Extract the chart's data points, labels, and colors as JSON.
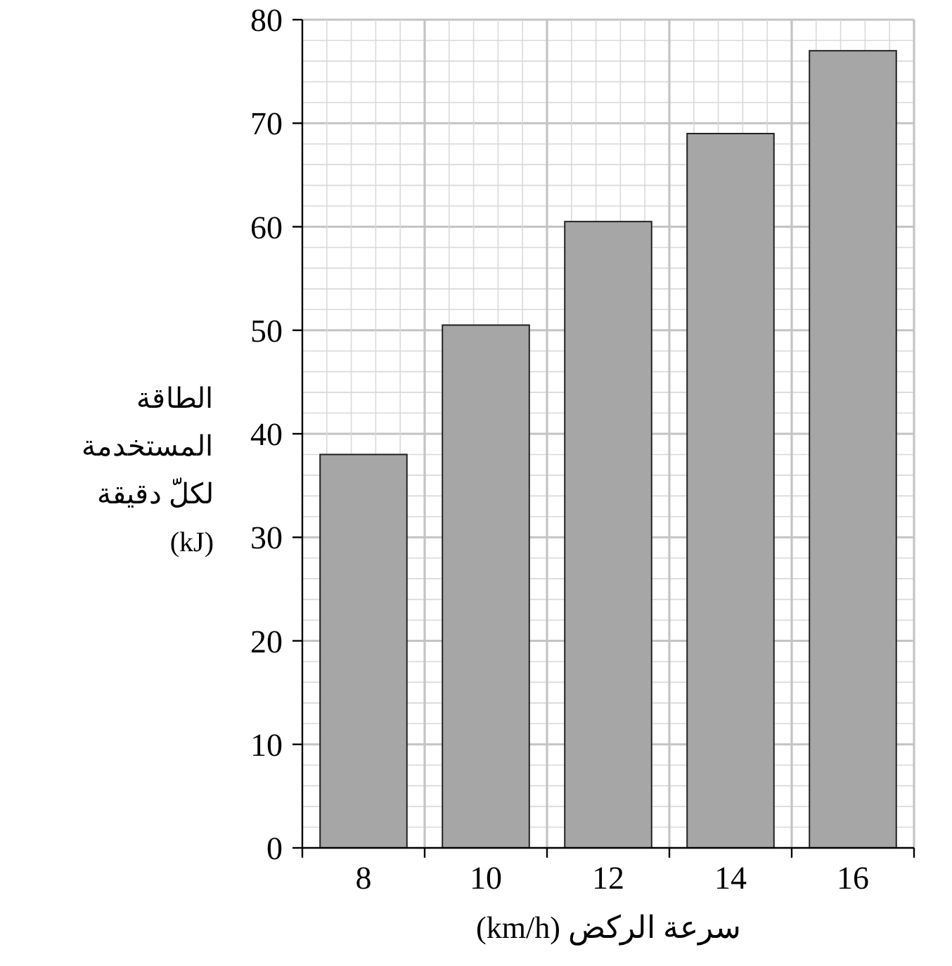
{
  "chart_data": {
    "type": "bar",
    "xlabel": "سرعة الركض (km/h)",
    "ylabel": "الطاقة\nالمستخدمة\nلكلّ دقيقة\n(kJ)",
    "categories": [
      "8",
      "10",
      "12",
      "14",
      "16"
    ],
    "values": [
      38,
      50.5,
      60.5,
      69,
      77
    ],
    "color": "#a6a6a6",
    "ylim": [
      0,
      80
    ],
    "yticks": [
      0,
      10,
      20,
      30,
      40,
      50,
      60,
      70,
      80
    ],
    "grid": true
  }
}
